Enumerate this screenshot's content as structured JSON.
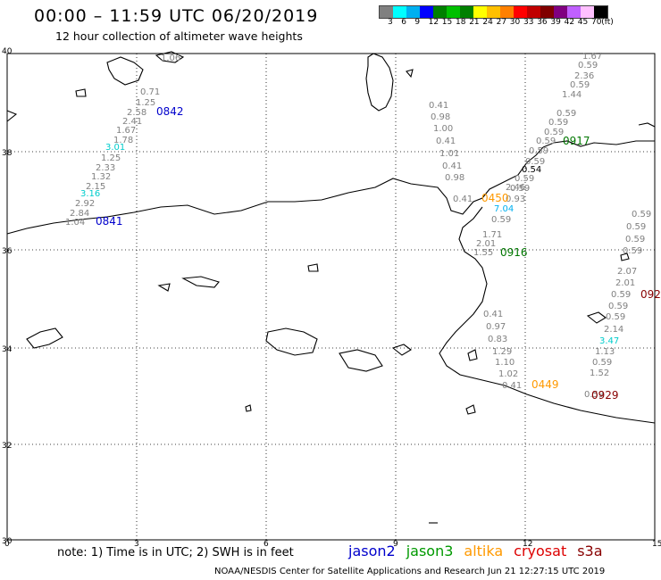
{
  "header": {
    "title": "00:00 – 11:59 UTC 06/20/2019",
    "subtitle": "12 hour collection of altimeter wave heights"
  },
  "legend": {
    "colors": [
      "#808080",
      "#00ffff",
      "#00b0f0",
      "#0000ff",
      "#008000",
      "#00c000",
      "#008000",
      "#ffff00",
      "#ffc000",
      "#ff8000",
      "#ff0000",
      "#c00000",
      "#800000",
      "#800080",
      "#c060ff",
      "#ffc0ff",
      "#000000"
    ],
    "labels": [
      "3",
      "6",
      "9",
      "12",
      "15",
      "18",
      "21",
      "24",
      "27",
      "30",
      "33",
      "36",
      "39",
      "42",
      "45",
      "70",
      "(ft)"
    ]
  },
  "axes": {
    "x_ticks": [
      "0",
      "3",
      "6",
      "9",
      "12",
      "15"
    ],
    "y_ticks": [
      "40",
      "38",
      "36",
      "34",
      "32",
      "30"
    ]
  },
  "passes": [
    {
      "label": "0842",
      "color": "#0000cc"
    },
    {
      "label": "0841",
      "color": "#0000cc"
    },
    {
      "label": "0917",
      "color": "#007700"
    },
    {
      "label": "0916",
      "color": "#007700"
    },
    {
      "label": "0450",
      "color": "#ff9900"
    },
    {
      "label": "0449",
      "color": "#ff9900"
    },
    {
      "label": "0929",
      "color": "#880000"
    },
    {
      "label": "092",
      "color": "#880000"
    }
  ],
  "values": [
    "1.06",
    "0.71",
    "1.25",
    "2.58",
    "2.41",
    "1.67",
    "1.78",
    "3.01",
    "1.25",
    "2.33",
    "1.32",
    "2.15",
    "3.16",
    "2.92",
    "2.84",
    "1.04",
    "1.67",
    "0.59",
    "2.36",
    "0.59",
    "1.44",
    "0.59",
    "0.59",
    "0.59",
    "0.59",
    "0.59",
    "0.59",
    "0.54",
    "0.59",
    "0.59",
    "2.46",
    "0.93",
    "0.59",
    "0.41",
    "0.98",
    "1.00",
    "0.41",
    "1.01",
    "0.41",
    "0.98",
    "0.41",
    "7.04",
    "1.71",
    "2.01",
    "1.55",
    "0.59",
    "0.59",
    "0.59",
    "0.59",
    "2.07",
    "2.01",
    "0.59",
    "0.59",
    "0.59",
    "2.14",
    "3.47",
    "1.13",
    "0.59",
    "1.52",
    "0.59",
    "0.41",
    "0.97",
    "0.83",
    "1.29",
    "1.10",
    "1.02",
    "0.41"
  ],
  "footer": {
    "note": "note:  1) Time is in UTC;  2) SWH is in feet",
    "sats": [
      {
        "name": "jason2",
        "color": "#0000cc"
      },
      {
        "name": "jason3",
        "color": "#009900"
      },
      {
        "name": "altika",
        "color": "#ff9900"
      },
      {
        "name": "cryosat",
        "color": "#dd0000"
      },
      {
        "name": "s3a",
        "color": "#880000"
      }
    ],
    "credit": "NOAA/NESDIS Center for Satellite Applications and Research   Jun 21 12:27:15 UTC 2019"
  }
}
